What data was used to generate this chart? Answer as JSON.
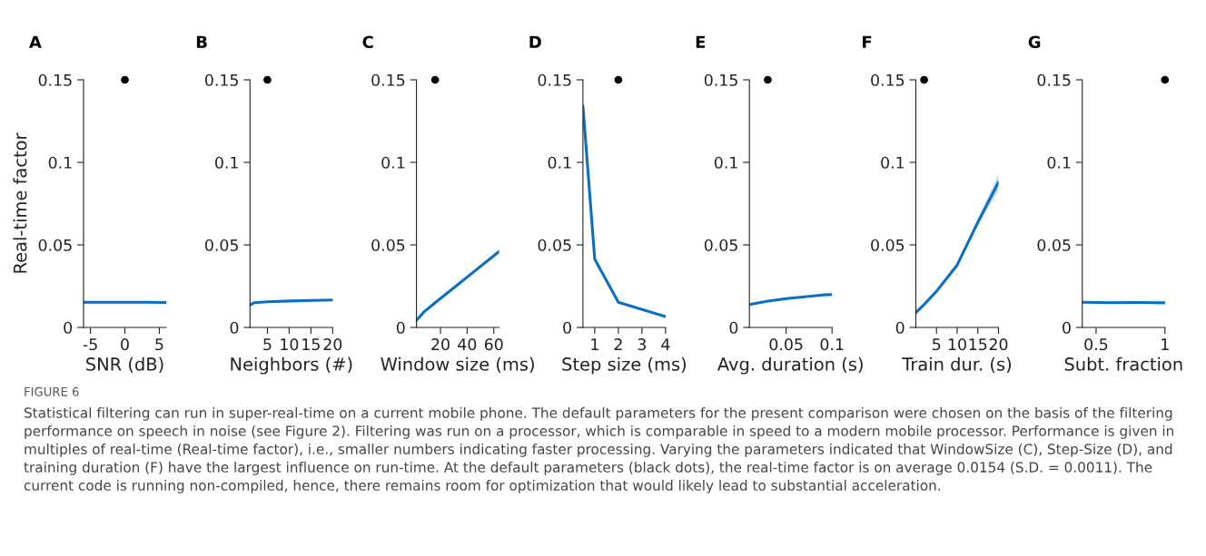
{
  "chart_data": [
    {
      "type": "line",
      "title": "A",
      "xlabel": "SNR (dB)",
      "ylabel": "Real-time factor",
      "xlim": [
        -6,
        6
      ],
      "xticks": [
        -5,
        0,
        5
      ],
      "ylim": [
        0,
        0.15
      ],
      "yticks": [
        0,
        0.05,
        0.1,
        0.15
      ],
      "grid": false,
      "series": [
        {
          "color": "#0a6fc2",
          "x": [
            -6,
            -3,
            0,
            3,
            6
          ],
          "values": [
            0.0152,
            0.0152,
            0.0152,
            0.0152,
            0.0151
          ]
        },
        {
          "type": "scatter",
          "color": "#000000",
          "marker": "circle",
          "x": [
            0
          ],
          "values": [
            0.15
          ]
        }
      ],
      "annotations": [
        "FIGURE 6",
        "Statistical filtering can run in super-real-time on a current mobile phone. The default parameters for the present comparison were chosen on the basis of the filtering performance on speech in noise (see Figure 2). Filtering was run on a processor, which is comparable in speed to a modern mobile processor. Performance is given in multiples of real-time (Real-time factor), i.e., smaller numbers indicating faster processing. Varying the parameters indicated that WindowSize (C), Step-Size (D), and training duration (F) have the largest influence on run-time. At the default parameters (black dots), the real-time factor is on average 0.0154 (S.D. = 0.0011). The current code is running non-compiled, hence, there remains room for optimization that would likely lead to substantial acceleration."
      ]
    },
    {
      "type": "line",
      "title": "B",
      "xlabel": "Neighbors (#)",
      "xlim": [
        1,
        20
      ],
      "xticks": [
        5,
        10,
        15,
        20
      ],
      "ylim": [
        0,
        0.15
      ],
      "yticks": [
        0,
        0.05,
        0.1,
        0.15
      ],
      "grid": false,
      "series": [
        {
          "color": "#0a6fc2",
          "x": [
            1,
            2,
            5,
            10,
            15,
            20
          ],
          "values": [
            0.0135,
            0.015,
            0.0155,
            0.016,
            0.0163,
            0.0166
          ]
        },
        {
          "type": "scatter",
          "color": "#000000",
          "marker": "circle",
          "x": [
            5
          ],
          "values": [
            0.15
          ]
        }
      ]
    },
    {
      "type": "line",
      "title": "C",
      "xlabel": "Window size (ms)",
      "xlim": [
        2,
        64
      ],
      "xticks": [
        20,
        40,
        60
      ],
      "ylim": [
        0,
        0.15
      ],
      "yticks": [
        0,
        0.05,
        0.1,
        0.15
      ],
      "grid": false,
      "series": [
        {
          "color": "#0a6fc2",
          "x": [
            2,
            8,
            16,
            32,
            64
          ],
          "values": [
            0.0042,
            0.0097,
            0.015,
            0.0253,
            0.046
          ]
        },
        {
          "type": "scatter",
          "color": "#000000",
          "marker": "circle",
          "x": [
            16
          ],
          "values": [
            0.15
          ]
        }
      ]
    },
    {
      "type": "line",
      "title": "D",
      "xlabel": "Step size (ms)",
      "xlim": [
        0.5,
        4
      ],
      "xticks": [
        1,
        2,
        3,
        4
      ],
      "ylim": [
        0,
        0.15
      ],
      "yticks": [
        0,
        0.05,
        0.1,
        0.15
      ],
      "grid": false,
      "series": [
        {
          "color": "#0a6fc2",
          "x": [
            0.5,
            1,
            2,
            4
          ],
          "values": [
            0.134,
            0.0414,
            0.0152,
            0.0066
          ]
        },
        {
          "type": "scatter",
          "color": "#000000",
          "marker": "circle",
          "x": [
            2
          ],
          "values": [
            0.15
          ]
        }
      ]
    },
    {
      "type": "line",
      "title": "E",
      "xlabel": "Avg. duration (s)",
      "xlim": [
        0.01,
        0.1
      ],
      "xticks": [
        0.05,
        0.1
      ],
      "ylim": [
        0,
        0.15
      ],
      "yticks": [
        0,
        0.05,
        0.1,
        0.15
      ],
      "grid": false,
      "series": [
        {
          "color": "#0a6fc2",
          "x": [
            0.01,
            0.03,
            0.05,
            0.07,
            0.09,
            0.1
          ],
          "values": [
            0.0139,
            0.0159,
            0.0175,
            0.0185,
            0.0197,
            0.0199
          ]
        },
        {
          "type": "scatter",
          "color": "#000000",
          "marker": "circle",
          "x": [
            0.03
          ],
          "values": [
            0.15
          ]
        }
      ]
    },
    {
      "type": "line",
      "title": "F",
      "xlabel": "Train dur. (s)",
      "xlim": [
        0,
        20
      ],
      "xticks": [
        5,
        10,
        15,
        20
      ],
      "ylim": [
        0,
        0.15
      ],
      "yticks": [
        0,
        0.05,
        0.1,
        0.15
      ],
      "grid": false,
      "series": [
        {
          "color": "#0a6fc2",
          "x": [
            0,
            2,
            5,
            10,
            15,
            20
          ],
          "values": [
            0.009,
            0.0139,
            0.0219,
            0.0378,
            0.0637,
            0.088
          ],
          "lower": [
            0.0088,
            0.0137,
            0.0216,
            0.0373,
            0.0617,
            0.083
          ],
          "upper": [
            0.0092,
            0.0141,
            0.0222,
            0.0383,
            0.0657,
            0.093
          ]
        },
        {
          "type": "scatter",
          "color": "#000000",
          "marker": "circle",
          "x": [
            2
          ],
          "values": [
            0.15
          ]
        }
      ]
    },
    {
      "type": "line",
      "title": "G",
      "xlabel": "Subt. fraction",
      "xlim": [
        0.4,
        1
      ],
      "xticks": [
        0.5,
        1
      ],
      "ylim": [
        0,
        0.15
      ],
      "yticks": [
        0,
        0.05,
        0.1,
        0.15
      ],
      "grid": false,
      "series": [
        {
          "color": "#0a6fc2",
          "x": [
            0.4,
            0.6,
            0.8,
            1
          ],
          "values": [
            0.0153,
            0.015,
            0.0151,
            0.0149
          ]
        },
        {
          "type": "scatter",
          "color": "#000000",
          "marker": "circle",
          "x": [
            1
          ],
          "values": [
            0.15
          ]
        }
      ]
    }
  ]
}
